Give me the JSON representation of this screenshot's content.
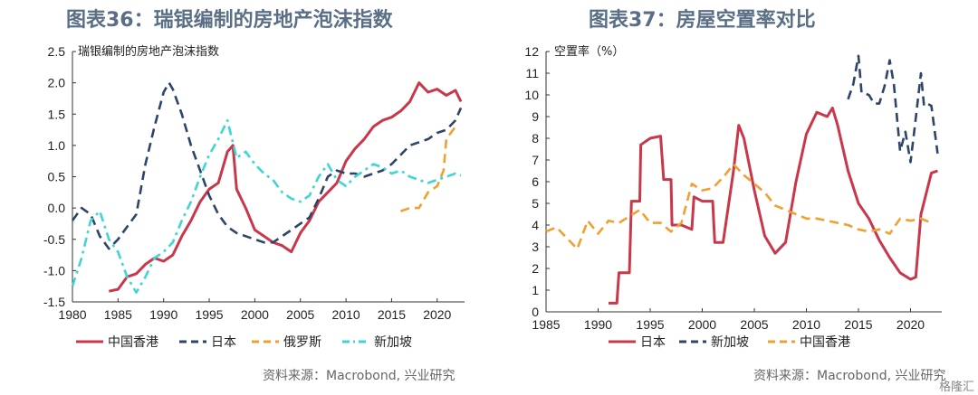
{
  "left": {
    "title": "图表36：瑞银编制的房地产泡沫指数",
    "source": "资料来源：Macrobond, 兴业研究"
  },
  "right": {
    "title": "图表37：房屋空置率对比",
    "source": "资料来源：Macrobond, 兴业研究"
  },
  "watermark": "格隆汇",
  "colors": {
    "red": "#c8374a",
    "navy": "#2e4468",
    "orange": "#f0a030",
    "cyan": "#3fd6d2",
    "title": "#5a6f86"
  },
  "chart_data": [
    {
      "type": "line",
      "title": "",
      "panel_label": "瑞银编制的房地产泡沫指数",
      "xlim": [
        1980,
        2023
      ],
      "ylim": [
        -1.5,
        2.5
      ],
      "xticks": [
        "1980",
        "1985",
        "1990",
        "1995",
        "2000",
        "2005",
        "2010",
        "2015",
        "2020"
      ],
      "yticks": [
        "-1.5",
        "-1.0",
        "-0.5",
        "0.0",
        "0.5",
        "1.0",
        "1.5",
        "2.0",
        "2.5"
      ],
      "series": [
        {
          "name": "中国香港",
          "color": "#c8374a",
          "style": "solid",
          "x": [
            1984,
            1985,
            1986,
            1987,
            1988,
            1989,
            1990,
            1991,
            1992,
            1993,
            1994,
            1995,
            1996,
            1997,
            1997.6,
            1998,
            1999,
            2000,
            2001,
            2002,
            2003,
            2004,
            2005,
            2006,
            2007,
            2008,
            2009,
            2010,
            2011,
            2012,
            2013,
            2014,
            2015,
            2016,
            2017,
            2018,
            2019,
            2020,
            2021,
            2022,
            2022.6
          ],
          "y": [
            -1.33,
            -1.3,
            -1.1,
            -1.05,
            -0.9,
            -0.8,
            -0.85,
            -0.75,
            -0.45,
            -0.2,
            0.1,
            0.3,
            0.4,
            0.9,
            1.0,
            0.3,
            0.0,
            -0.35,
            -0.45,
            -0.55,
            -0.6,
            -0.7,
            -0.4,
            -0.2,
            0.1,
            0.25,
            0.4,
            0.75,
            0.95,
            1.1,
            1.3,
            1.4,
            1.45,
            1.55,
            1.7,
            2.0,
            1.85,
            1.9,
            1.8,
            1.88,
            1.7
          ]
        },
        {
          "name": "日本",
          "color": "#2e4468",
          "style": "dashed",
          "x": [
            1980,
            1981,
            1982,
            1983,
            1984,
            1985,
            1986,
            1987,
            1988,
            1989,
            1990,
            1990.6,
            1991,
            1992,
            1993,
            1994,
            1995,
            1996,
            1997,
            1998,
            1999,
            2000,
            2001,
            2002,
            2003,
            2004,
            2005,
            2006,
            2007,
            2008,
            2009,
            2010,
            2011,
            2012,
            2013,
            2014,
            2015,
            2016,
            2017,
            2018,
            2019,
            2020,
            2021,
            2022,
            2022.6
          ],
          "y": [
            -0.2,
            0.0,
            -0.1,
            -0.45,
            -0.65,
            -0.5,
            -0.3,
            -0.1,
            0.7,
            1.3,
            1.85,
            2.0,
            1.9,
            1.5,
            1.0,
            0.6,
            0.2,
            -0.1,
            -0.3,
            -0.4,
            -0.45,
            -0.5,
            -0.55,
            -0.55,
            -0.45,
            -0.35,
            -0.25,
            -0.15,
            0.15,
            0.5,
            0.6,
            0.55,
            0.55,
            0.5,
            0.55,
            0.6,
            0.7,
            0.85,
            1.0,
            1.05,
            1.1,
            1.2,
            1.25,
            1.4,
            1.6
          ]
        },
        {
          "name": "俄罗斯",
          "color": "#f0a030",
          "style": "dashed",
          "x": [
            2016,
            2017,
            2018,
            2019,
            2020,
            2020.7,
            2021,
            2022
          ],
          "y": [
            -0.05,
            0.0,
            0.0,
            0.25,
            0.35,
            0.6,
            1.1,
            1.3
          ]
        },
        {
          "name": "新加坡",
          "color": "#3fd6d2",
          "style": "dashdot",
          "x": [
            1980,
            1981,
            1982,
            1983,
            1984,
            1985,
            1986,
            1987,
            1988,
            1989,
            1990,
            1991,
            1992,
            1993,
            1994,
            1995,
            1996,
            1997,
            1998,
            1999,
            2000,
            2001,
            2002,
            2003,
            2004,
            2005,
            2006,
            2007,
            2008,
            2009,
            2010,
            2011,
            2012,
            2013,
            2014,
            2015,
            2016,
            2017,
            2018,
            2019,
            2020,
            2021,
            2022,
            2022.6
          ],
          "y": [
            -1.25,
            -0.8,
            -0.2,
            -0.05,
            -0.5,
            -0.7,
            -1.1,
            -1.35,
            -1.1,
            -0.8,
            -0.7,
            -0.55,
            -0.2,
            0.1,
            0.5,
            0.85,
            1.1,
            1.4,
            0.8,
            0.9,
            0.7,
            0.55,
            0.45,
            0.25,
            0.15,
            0.1,
            0.2,
            0.5,
            0.7,
            0.45,
            0.35,
            0.5,
            0.6,
            0.7,
            0.65,
            0.55,
            0.6,
            0.5,
            0.45,
            0.4,
            0.45,
            0.5,
            0.55,
            0.52
          ]
        }
      ]
    },
    {
      "type": "line",
      "title": "",
      "panel_label": "空置率（%）",
      "xlim": [
        1985,
        2023
      ],
      "ylim": [
        0,
        12
      ],
      "xticks": [
        "1985",
        "1990",
        "1995",
        "2000",
        "2005",
        "2010",
        "2015",
        "2020"
      ],
      "yticks": [
        "0",
        "1",
        "2",
        "3",
        "4",
        "5",
        "6",
        "7",
        "8",
        "9",
        "10",
        "11",
        "12"
      ],
      "series": [
        {
          "name": "日本",
          "color": "#c8374a",
          "style": "solid",
          "x": [
            1991,
            1991.8,
            1992,
            1993,
            1993.2,
            1994,
            1994.1,
            1995,
            1996,
            1996.3,
            1997,
            1997.1,
            1998,
            1999,
            1999.2,
            2000,
            2001,
            2001.2,
            2002,
            2003,
            2003.5,
            2004,
            2005,
            2006,
            2007,
            2008,
            2009,
            2010,
            2011,
            2012,
            2012.5,
            2013,
            2014,
            2015,
            2016,
            2017,
            2018,
            2019,
            2020,
            2020.5,
            2021,
            2022,
            2022.6
          ],
          "y": [
            0.4,
            0.4,
            1.8,
            1.8,
            5.1,
            5.1,
            7.7,
            8.0,
            8.1,
            6.1,
            6.1,
            4.0,
            4.0,
            3.8,
            5.3,
            5.1,
            5.1,
            3.2,
            3.2,
            6.5,
            8.6,
            8.0,
            5.6,
            3.5,
            2.7,
            3.2,
            6.0,
            8.2,
            9.2,
            9.0,
            9.4,
            8.6,
            6.5,
            5.0,
            4.3,
            3.3,
            2.5,
            1.8,
            1.5,
            1.6,
            4.5,
            6.4,
            6.5
          ]
        },
        {
          "name": "新加坡",
          "color": "#2e4468",
          "style": "dashed",
          "x": [
            2014,
            2014.5,
            2015,
            2015.3,
            2016,
            2016.5,
            2017,
            2017.5,
            2018,
            2018.4,
            2019,
            2019.5,
            2020,
            2020.4,
            2021,
            2021.3,
            2021.6,
            2022,
            2022.6
          ],
          "y": [
            9.8,
            10.5,
            11.8,
            10.1,
            10.0,
            9.6,
            9.6,
            10.4,
            11.6,
            10.5,
            7.4,
            8.3,
            6.9,
            8.5,
            11.0,
            9.5,
            9.6,
            9.5,
            7.3
          ]
        },
        {
          "name": "中国香港",
          "color": "#f0a030",
          "style": "dashed",
          "x": [
            1985,
            1986,
            1987,
            1988,
            1989,
            1990,
            1991,
            1992,
            1993,
            1994,
            1995,
            1996,
            1997,
            1998,
            1999,
            2000,
            2001,
            2002,
            2003,
            2004,
            2005,
            2006,
            2007,
            2008,
            2009,
            2010,
            2011,
            2012,
            2013,
            2014,
            2015,
            2016,
            2017,
            2018,
            2019,
            2020,
            2021,
            2022
          ],
          "y": [
            3.7,
            3.9,
            3.4,
            2.9,
            4.2,
            3.6,
            4.2,
            4.1,
            4.4,
            4.7,
            4.1,
            4.1,
            3.7,
            4.1,
            5.9,
            5.6,
            5.7,
            6.2,
            6.8,
            6.3,
            5.9,
            5.5,
            4.9,
            4.7,
            4.5,
            4.3,
            4.3,
            4.2,
            4.1,
            4.0,
            3.8,
            3.7,
            3.8,
            3.6,
            4.3,
            4.2,
            4.3,
            4.1
          ]
        }
      ]
    }
  ]
}
